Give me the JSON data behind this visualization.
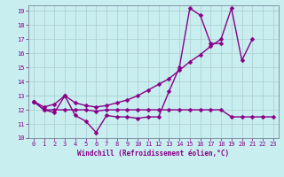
{
  "xlabel": "Windchill (Refroidissement éolien,°C)",
  "bg_color": "#c8eef0",
  "line_color": "#880088",
  "grid_color": "#aacccc",
  "xlim": [
    -0.5,
    23.5
  ],
  "ylim": [
    10,
    19.4
  ],
  "xticks": [
    0,
    1,
    2,
    3,
    4,
    5,
    6,
    7,
    8,
    9,
    10,
    11,
    12,
    13,
    14,
    15,
    16,
    17,
    18,
    19,
    20,
    21,
    22,
    23
  ],
  "yticks": [
    10,
    11,
    12,
    13,
    14,
    15,
    16,
    17,
    18,
    19
  ],
  "line_jagged_x": [
    0,
    1,
    2,
    3,
    4,
    5,
    6,
    7,
    8,
    9,
    10,
    11,
    12,
    13,
    14,
    15,
    16,
    17,
    18
  ],
  "line_jagged_y": [
    12.6,
    12.0,
    11.8,
    13.0,
    11.6,
    11.2,
    10.4,
    11.6,
    11.5,
    11.5,
    11.4,
    11.5,
    11.5,
    13.3,
    15.0,
    19.2,
    18.7,
    16.7,
    16.7
  ],
  "line_upper_x": [
    0,
    1,
    2,
    3,
    4,
    5,
    6,
    7,
    8,
    9,
    10,
    11,
    12,
    13,
    14,
    15,
    16,
    17,
    18,
    19,
    20,
    21
  ],
  "line_upper_y": [
    12.6,
    12.2,
    12.4,
    13.0,
    12.5,
    12.3,
    12.2,
    12.3,
    12.5,
    12.7,
    13.0,
    13.4,
    13.8,
    14.2,
    14.8,
    15.4,
    15.9,
    16.5,
    17.0,
    19.2,
    15.5,
    17.0
  ],
  "line_lower_x": [
    0,
    1,
    2,
    3,
    4,
    5,
    6,
    7,
    8,
    9,
    10,
    11,
    12,
    13,
    14,
    15,
    16,
    17,
    18,
    19,
    20,
    21,
    22,
    23
  ],
  "line_lower_y": [
    12.6,
    12.0,
    12.0,
    12.0,
    12.0,
    12.0,
    11.9,
    12.0,
    12.0,
    12.0,
    12.0,
    12.0,
    12.0,
    12.0,
    12.0,
    12.0,
    12.0,
    12.0,
    12.0,
    11.5,
    11.5,
    11.5,
    11.5,
    11.5
  ],
  "marker": "D",
  "markersize": 2.5,
  "linewidth": 1.0,
  "label_fontsize": 5.5,
  "tick_fontsize": 5.0
}
